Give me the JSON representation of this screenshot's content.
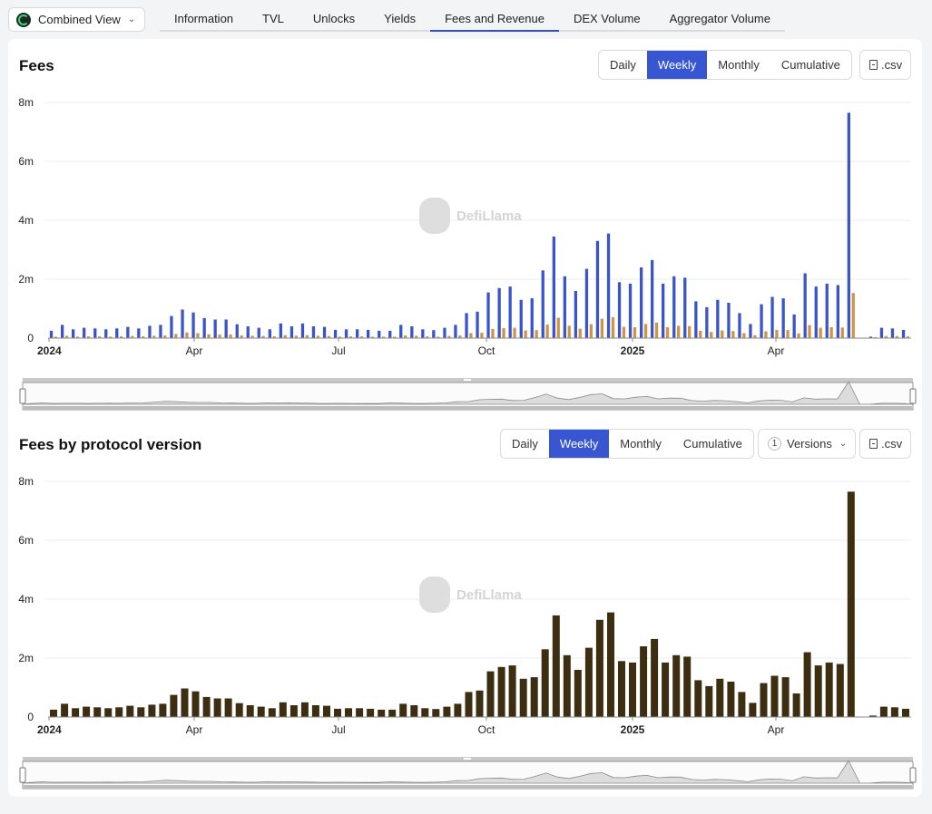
{
  "header": {
    "view_select": {
      "label": "Combined View",
      "logo_icon": "protocol-logo-icon",
      "chevron_icon": "chevron-down-icon"
    },
    "tabs": [
      {
        "label": "Information",
        "active": false
      },
      {
        "label": "TVL",
        "active": false
      },
      {
        "label": "Unlocks",
        "active": false
      },
      {
        "label": "Yields",
        "active": false
      },
      {
        "label": "Fees and Revenue",
        "active": true
      },
      {
        "label": "DEX Volume",
        "active": false
      },
      {
        "label": "Aggregator Volume",
        "active": false
      }
    ]
  },
  "fees_section": {
    "title": "Fees",
    "periods": [
      "Daily",
      "Weekly",
      "Monthly",
      "Cumulative"
    ],
    "active_period": "Weekly",
    "csv_label": ".csv",
    "csv_icon": "file-download-icon"
  },
  "version_section": {
    "title": "Fees by protocol version",
    "periods": [
      "Daily",
      "Weekly",
      "Monthly",
      "Cumulative"
    ],
    "active_period": "Weekly",
    "versions_count": "1",
    "versions_label": "Versions",
    "versions_chevron_icon": "chevron-down-icon",
    "csv_label": ".csv",
    "csv_icon": "file-download-icon"
  },
  "watermark": {
    "text": "DefiLlama",
    "icon": "llama-logo-icon"
  },
  "colors": {
    "fees": "#3a55cc",
    "revenue": "#cf9445",
    "version": "#3d2e12",
    "accent": "#3856d1"
  },
  "chart_data": [
    {
      "type": "bar",
      "title": "Fees",
      "x_tick_labels": [
        "2024",
        "Apr",
        "Jul",
        "Oct",
        "2025",
        "Apr"
      ],
      "y_tick_labels": [
        "0",
        "2m",
        "4m",
        "6m",
        "8m"
      ],
      "ylim": [
        0,
        8000000
      ],
      "grid": true,
      "unit": "USD",
      "series": [
        {
          "values": [
            0.25,
            0.45,
            0.3,
            0.35,
            0.33,
            0.3,
            0.33,
            0.38,
            0.33,
            0.42,
            0.45,
            0.75,
            0.97,
            0.87,
            0.68,
            0.63,
            0.63,
            0.47,
            0.4,
            0.35,
            0.3,
            0.5,
            0.4,
            0.5,
            0.4,
            0.38,
            0.28,
            0.3,
            0.3,
            0.28,
            0.25,
            0.25,
            0.45,
            0.4,
            0.3,
            0.27,
            0.35,
            0.45,
            0.85,
            0.9,
            1.55,
            1.7,
            1.75,
            1.3,
            1.35,
            2.3,
            3.45,
            2.1,
            1.6,
            2.35,
            3.3,
            3.55,
            1.9,
            1.85,
            2.4,
            2.65,
            1.85,
            2.1,
            2.05,
            1.25,
            1.05,
            1.3,
            1.2,
            0.85,
            0.48,
            1.15,
            1.4,
            1.35,
            0.8,
            2.2,
            1.75,
            1.85,
            1.8,
            7.65,
            0.0,
            0.05,
            0.35,
            0.33,
            0.28
          ]
        },
        {
          "values": [
            0.05,
            0.08,
            0.05,
            0.06,
            0.06,
            0.05,
            0.06,
            0.07,
            0.06,
            0.08,
            0.09,
            0.14,
            0.19,
            0.17,
            0.13,
            0.12,
            0.12,
            0.09,
            0.08,
            0.07,
            0.06,
            0.1,
            0.08,
            0.1,
            0.08,
            0.07,
            0.05,
            0.06,
            0.06,
            0.05,
            0.05,
            0.05,
            0.09,
            0.08,
            0.06,
            0.05,
            0.07,
            0.09,
            0.17,
            0.18,
            0.31,
            0.34,
            0.35,
            0.26,
            0.27,
            0.46,
            0.69,
            0.42,
            0.32,
            0.47,
            0.66,
            0.71,
            0.38,
            0.37,
            0.48,
            0.53,
            0.37,
            0.42,
            0.41,
            0.25,
            0.21,
            0.26,
            0.24,
            0.17,
            0.1,
            0.23,
            0.28,
            0.27,
            0.16,
            0.44,
            0.35,
            0.37,
            0.36,
            1.53,
            0.0,
            0.01,
            0.07,
            0.07,
            0.06
          ]
        }
      ]
    },
    {
      "type": "bar",
      "title": "Fees by protocol version",
      "x_tick_labels": [
        "2024",
        "Apr",
        "Jul",
        "Oct",
        "2025",
        "Apr"
      ],
      "y_tick_labels": [
        "0",
        "2m",
        "4m",
        "6m",
        "8m"
      ],
      "ylim": [
        0,
        8000000
      ],
      "grid": true,
      "unit": "USD",
      "series": [
        {
          "values": [
            0.25,
            0.45,
            0.3,
            0.35,
            0.33,
            0.3,
            0.33,
            0.38,
            0.33,
            0.42,
            0.45,
            0.75,
            0.97,
            0.87,
            0.68,
            0.63,
            0.63,
            0.47,
            0.4,
            0.35,
            0.3,
            0.5,
            0.4,
            0.5,
            0.4,
            0.38,
            0.28,
            0.3,
            0.3,
            0.28,
            0.25,
            0.25,
            0.45,
            0.4,
            0.3,
            0.27,
            0.35,
            0.45,
            0.85,
            0.9,
            1.55,
            1.7,
            1.75,
            1.3,
            1.35,
            2.3,
            3.45,
            2.1,
            1.6,
            2.35,
            3.3,
            3.55,
            1.9,
            1.85,
            2.4,
            2.65,
            1.85,
            2.1,
            2.05,
            1.25,
            1.05,
            1.3,
            1.2,
            0.85,
            0.48,
            1.15,
            1.4,
            1.35,
            0.8,
            2.2,
            1.75,
            1.85,
            1.8,
            7.65,
            0.0,
            0.05,
            0.35,
            0.33,
            0.28
          ]
        }
      ]
    }
  ]
}
